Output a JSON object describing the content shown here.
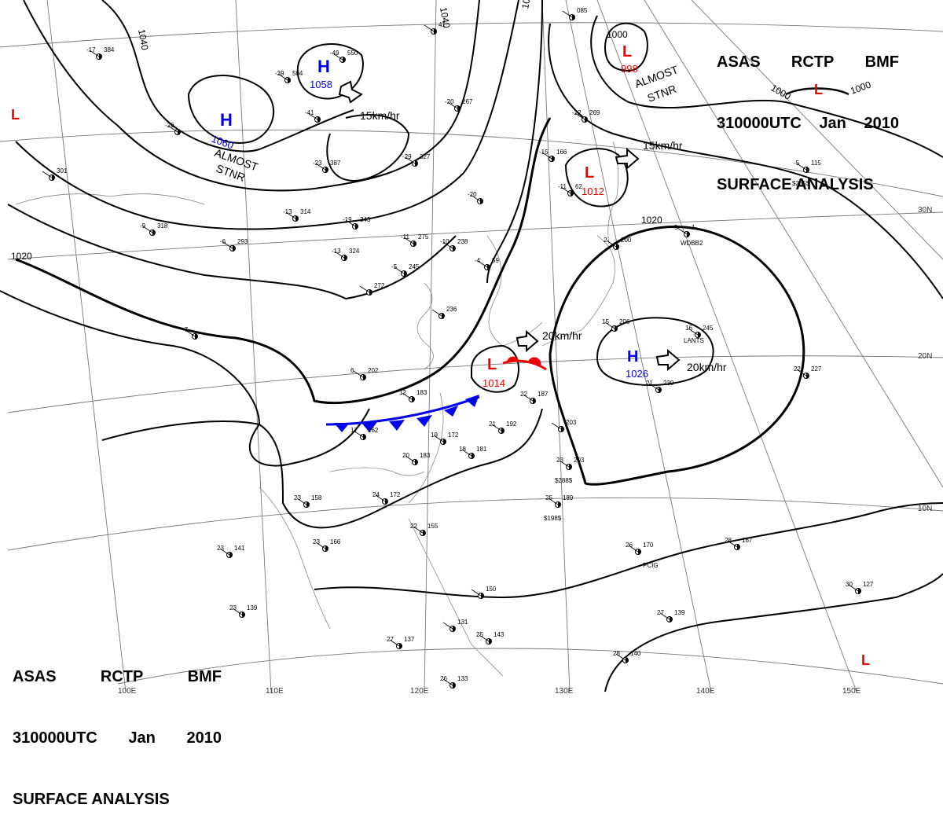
{
  "header": {
    "line1": [
      "ASAS",
      "RCTP",
      "BMF"
    ],
    "line2": [
      "310000UTC",
      "Jan",
      "2010"
    ],
    "line3": "SURFACE ANALYSIS"
  },
  "colors": {
    "high": "#0000ee",
    "low": "#ee0000",
    "cold_front": "#0000ee",
    "warm_front": "#ee0000",
    "isobar": "#000000",
    "grid": "#777777"
  },
  "longitude_labels": [
    "110E",
    "120E",
    "130E",
    "140E",
    "150E",
    "100E"
  ],
  "latitude_labels": [
    "30N",
    "20N",
    "10N"
  ],
  "isobar_labels": [
    "1040",
    "1040",
    "1020",
    "1020",
    "1020",
    "1000",
    "1000",
    "1000"
  ],
  "pressure_centers": [
    {
      "type": "H",
      "value": "1060",
      "name": "high-1060"
    },
    {
      "type": "H",
      "value": "1058",
      "name": "high-1058"
    },
    {
      "type": "L",
      "value": "998",
      "name": "low-998"
    },
    {
      "type": "L",
      "value": "1012",
      "name": "low-1012"
    },
    {
      "type": "L",
      "value": "1014",
      "name": "low-1014"
    },
    {
      "type": "H",
      "value": "1026",
      "name": "high-1026"
    },
    {
      "type": "L",
      "value": "",
      "name": "low-west-edge"
    },
    {
      "type": "L",
      "value": "",
      "name": "low-northeast"
    },
    {
      "type": "L",
      "value": "",
      "name": "low-southeast"
    }
  ],
  "motion_labels": [
    "15km/hr",
    "15km/hr",
    "20km/hr",
    "20km/hr"
  ],
  "stationary_labels": [
    "ALMOST",
    "STNR",
    "ALMOST",
    "STNR"
  ],
  "station_plots": [
    {
      "t": "-17",
      "p": "384"
    },
    {
      "t": "-39",
      "p": "504"
    },
    {
      "t": "-49",
      "p": "550"
    },
    {
      "t": "-26",
      "p": ""
    },
    {
      "t": "-41",
      "p": ""
    },
    {
      "t": "-23",
      "p": "387"
    },
    {
      "t": "-29",
      "p": "327"
    },
    {
      "t": "-20",
      "p": "267"
    },
    {
      "t": "-19",
      "p": "343"
    },
    {
      "t": "-13",
      "p": "324"
    },
    {
      "t": "-11",
      "p": "275"
    },
    {
      "t": "-10",
      "p": "238"
    },
    {
      "t": "-9",
      "p": "318"
    },
    {
      "t": "-6",
      "p": "293"
    },
    {
      "t": "-13",
      "p": "314"
    },
    {
      "t": "-20",
      "p": ""
    },
    {
      "t": "-7",
      "p": ""
    },
    {
      "t": "-5",
      "p": "245"
    },
    {
      "t": "",
      "p": "272"
    },
    {
      "t": "",
      "p": "236"
    },
    {
      "t": "-15",
      "p": "166"
    },
    {
      "t": "-11",
      "p": "62"
    },
    {
      "t": "-4",
      "p": "59"
    },
    {
      "t": "2",
      "p": "200"
    },
    {
      "t": "5",
      "p": "1"
    },
    {
      "t": "6",
      "p": "202"
    },
    {
      "t": "12",
      "p": "183"
    },
    {
      "t": "17",
      "p": "162"
    },
    {
      "t": "19",
      "p": "172"
    },
    {
      "t": "20",
      "p": "183"
    },
    {
      "t": "18",
      "p": "181"
    },
    {
      "t": "21",
      "p": "192"
    },
    {
      "t": "22",
      "p": "187"
    },
    {
      "t": "24",
      "p": "172"
    },
    {
      "t": "23",
      "p": "158"
    },
    {
      "t": "23",
      "p": "166"
    },
    {
      "t": "23",
      "p": "141"
    },
    {
      "t": "23",
      "p": "139"
    },
    {
      "t": "22",
      "p": "155"
    },
    {
      "t": "25",
      "p": "189"
    },
    {
      "t": "23",
      "p": "203"
    },
    {
      "t": "",
      "p": "203"
    },
    {
      "t": "15",
      "p": "206"
    },
    {
      "t": "16",
      "p": "245"
    },
    {
      "t": "22",
      "p": "227"
    },
    {
      "t": "21",
      "p": "239"
    },
    {
      "t": "26",
      "p": "170"
    },
    {
      "t": "28",
      "p": "167"
    },
    {
      "t": "27",
      "p": "139"
    },
    {
      "t": "28",
      "p": "140"
    },
    {
      "t": "30",
      "p": "127"
    },
    {
      "t": "27",
      "p": "137"
    },
    {
      "t": "26",
      "p": "133"
    },
    {
      "t": "25",
      "p": "143"
    },
    {
      "t": "",
      "p": "150"
    },
    {
      "t": "",
      "p": "131"
    },
    {
      "t": "-5",
      "p": "115"
    },
    {
      "t": "-22",
      "p": "269"
    },
    {
      "t": "",
      "p": "085"
    },
    {
      "t": "",
      "p": "41"
    },
    {
      "t": "",
      "p": "301"
    }
  ],
  "station_ids": [
    "WDBB2",
    "LANTS",
    "PCIG",
    "$198$",
    "$288$",
    "$285$"
  ]
}
